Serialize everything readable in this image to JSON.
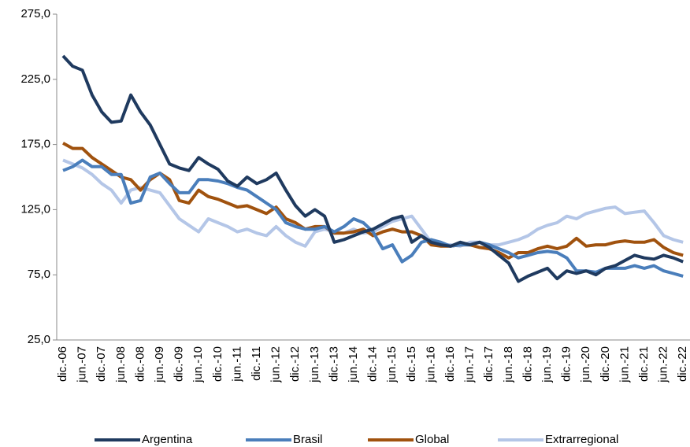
{
  "chart_data": {
    "type": "line",
    "categories": [
      "dic.-06",
      null,
      "jun.-07",
      null,
      "dic.-07",
      null,
      "jun.-08",
      null,
      "dic.-08",
      null,
      "jun.-09",
      null,
      "dic.-09",
      null,
      "jun.-10",
      null,
      "dic.-10",
      null,
      "jun.-11",
      null,
      "dic.-11",
      null,
      "jun.-12",
      null,
      "dic.-12",
      null,
      "jun.-13",
      null,
      "dic.-13",
      null,
      "jun.-14",
      null,
      "dic.-14",
      null,
      "jun.-15",
      null,
      "dic.-15",
      null,
      "jun.-16",
      null,
      "dic.-16",
      null,
      "jun.-17",
      null,
      "dic.-17",
      null,
      "jun.-18",
      null,
      "dic.-18",
      null,
      "jun.-19",
      null,
      "dic.-19",
      null,
      "jun.-20",
      null,
      "dic.-20",
      null,
      "jun.-21",
      null,
      "dic.-21",
      null,
      "jun.-22",
      null,
      "dic.-22"
    ],
    "series": [
      {
        "name": "Argentina",
        "color": "#1f3a5f",
        "values": [
          243,
          235,
          232,
          213,
          200,
          192,
          193,
          213,
          200,
          190,
          175,
          160,
          157,
          155,
          165,
          160,
          156,
          147,
          143,
          150,
          145,
          148,
          153,
          140,
          128,
          120,
          125,
          120,
          100,
          102,
          105,
          108,
          110,
          114,
          118,
          120,
          100,
          105,
          100,
          98,
          97,
          100,
          98,
          100,
          96,
          90,
          84,
          70,
          74,
          77,
          80,
          72,
          78,
          76,
          78,
          75,
          80,
          82,
          86,
          90,
          88,
          87,
          90,
          88,
          85
        ]
      },
      {
        "name": "Brasil",
        "color": "#4a7ebb",
        "values": [
          155,
          158,
          163,
          158,
          158,
          152,
          152,
          130,
          132,
          150,
          153,
          145,
          138,
          138,
          148,
          148,
          147,
          145,
          142,
          140,
          135,
          130,
          125,
          115,
          112,
          110,
          110,
          112,
          108,
          112,
          118,
          115,
          108,
          95,
          98,
          85,
          90,
          100,
          102,
          100,
          97,
          98,
          98,
          100,
          98,
          95,
          92,
          88,
          90,
          92,
          93,
          92,
          88,
          78,
          78,
          77,
          80,
          80,
          80,
          82,
          80,
          82,
          78,
          76,
          74
        ]
      },
      {
        "name": "Global",
        "color": "#a0520e",
        "values": [
          176,
          172,
          172,
          165,
          160,
          155,
          150,
          148,
          140,
          148,
          153,
          148,
          132,
          130,
          140,
          135,
          133,
          130,
          127,
          128,
          125,
          122,
          127,
          118,
          115,
          110,
          112,
          112,
          107,
          107,
          108,
          110,
          105,
          108,
          110,
          108,
          108,
          105,
          98,
          97,
          97,
          98,
          98,
          96,
          95,
          92,
          88,
          92,
          92,
          95,
          97,
          95,
          97,
          103,
          97,
          98,
          98,
          100,
          101,
          100,
          100,
          102,
          96,
          92,
          90
        ]
      },
      {
        "name": "Extrarregional",
        "color": "#b4c6e7",
        "values": [
          163,
          160,
          157,
          152,
          145,
          140,
          130,
          140,
          142,
          140,
          138,
          128,
          118,
          113,
          108,
          118,
          115,
          112,
          108,
          110,
          107,
          105,
          112,
          105,
          100,
          97,
          108,
          110,
          108,
          107,
          110,
          107,
          108,
          112,
          116,
          118,
          120,
          110,
          100,
          98,
          98,
          97,
          100,
          100,
          98,
          98,
          100,
          102,
          105,
          110,
          113,
          115,
          120,
          118,
          122,
          124,
          126,
          127,
          122,
          123,
          124,
          115,
          105,
          102,
          100
        ]
      }
    ],
    "ylim": [
      25,
      275
    ],
    "yticks": [
      {
        "value": 25,
        "label": "25,0"
      },
      {
        "value": 75,
        "label": "75,0"
      },
      {
        "value": 125,
        "label": "125,0"
      },
      {
        "value": 175,
        "label": "175,0"
      },
      {
        "value": 225,
        "label": "225,0"
      },
      {
        "value": 275,
        "label": "275,0"
      }
    ],
    "legend": "bottom"
  }
}
